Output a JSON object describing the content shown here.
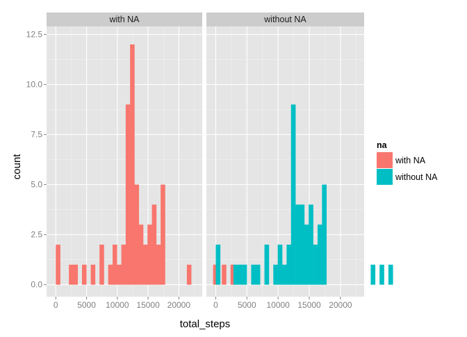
{
  "chart_data": {
    "type": "bar",
    "chart_kind": "faceted histogram",
    "xlabel": "total_steps",
    "ylabel": "count",
    "xlim": [
      -1500,
      23800
    ],
    "ylim": [
      -0.6,
      12.9
    ],
    "xticks": [
      0,
      5000,
      10000,
      15000,
      20000
    ],
    "xtick_labels": [
      "0",
      "5000",
      "10000",
      "15000",
      "20000"
    ],
    "yticks": [
      0,
      2.5,
      5,
      7.5,
      10,
      12.5
    ],
    "ytick_labels": [
      "0.0",
      "2.5",
      "5.0",
      "7.5",
      "10.0",
      "12.5"
    ],
    "grid": true,
    "bin_width": 710,
    "bin_start": 0,
    "legend": {
      "title": "na",
      "position": "right",
      "entries": [
        {
          "label": "with NA",
          "color": "#F8766D"
        },
        {
          "label": "without NA",
          "color": "#00BFC4"
        }
      ]
    },
    "panels": [
      {
        "strip": "with NA",
        "color": "#F8766D",
        "counts": [
          2,
          0,
          0,
          1,
          1,
          0,
          1,
          0,
          1,
          0,
          2,
          0,
          1,
          2,
          1,
          2,
          9,
          12,
          5,
          3,
          2,
          3,
          4,
          2,
          5,
          0,
          0,
          0,
          0,
          0,
          1,
          0,
          0,
          0,
          0,
          0,
          1,
          0,
          1,
          0,
          1
        ]
      },
      {
        "strip": "without NA",
        "color": "#00BFC4",
        "counts": [
          2,
          0,
          0,
          0,
          1,
          1,
          1,
          0,
          1,
          1,
          0,
          2,
          0,
          1,
          2,
          1,
          2,
          9,
          4,
          4,
          3,
          4,
          2,
          3,
          5,
          0,
          0,
          0,
          0,
          0,
          0,
          0,
          0,
          0,
          0,
          1,
          0,
          1,
          0,
          1,
          0
        ]
      }
    ]
  }
}
